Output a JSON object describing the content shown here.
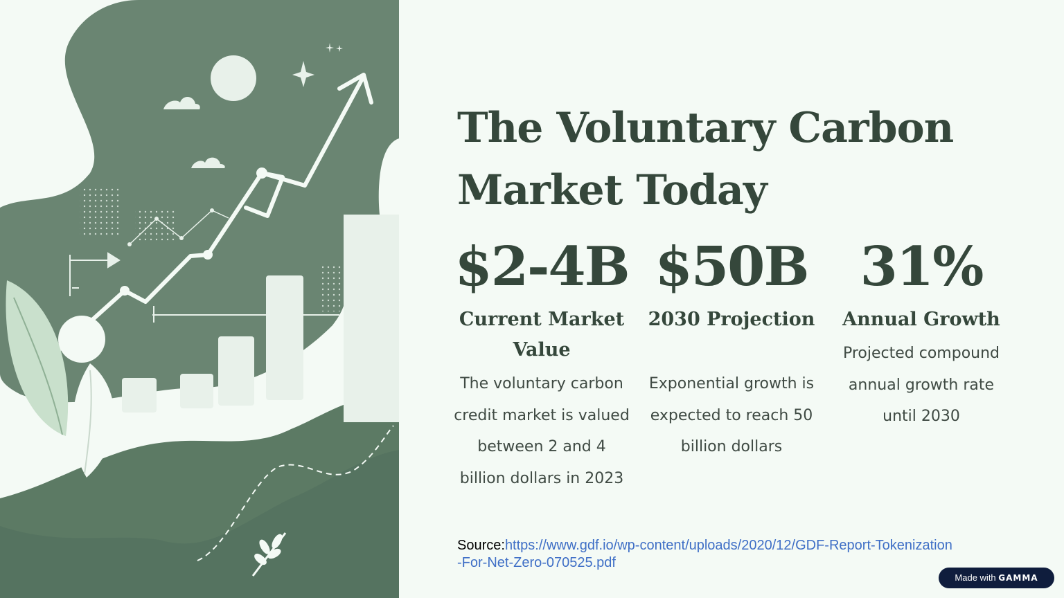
{
  "slide": {
    "title": "The Voluntary Carbon Market Today",
    "stats": [
      {
        "value": "$2-4B",
        "label": "Current Market Value",
        "description": "The voluntary carbon credit market is valued between 2 and 4 billion dollars in 2023"
      },
      {
        "value": "$50B",
        "label": "2030 Projection",
        "description": "Exponential growth is expected to reach 50 billion dollars"
      },
      {
        "value": "31%",
        "label": "Annual Growth",
        "description": "Projected compound annual growth rate until 2030"
      }
    ],
    "source_prefix": "Source:",
    "source_url": "https://www.gdf.io/wp-content/uploads/2020/12/GDF-Report-Tokenization-For-Net-Zero-070525.pdf"
  },
  "badge": {
    "prefix": "Made with",
    "brand": "GAMMA"
  },
  "colors": {
    "dark_green": "#35473b",
    "mid_green": "#6a8572",
    "light_bg": "#f4faf5",
    "link": "#3f6fc6",
    "badge_bg": "#0f1d3d"
  },
  "icons": [
    "growth-arrow-icon",
    "sun-icon",
    "cloud-icon",
    "sparkle-icon",
    "leaf-icon",
    "flag-icon"
  ]
}
